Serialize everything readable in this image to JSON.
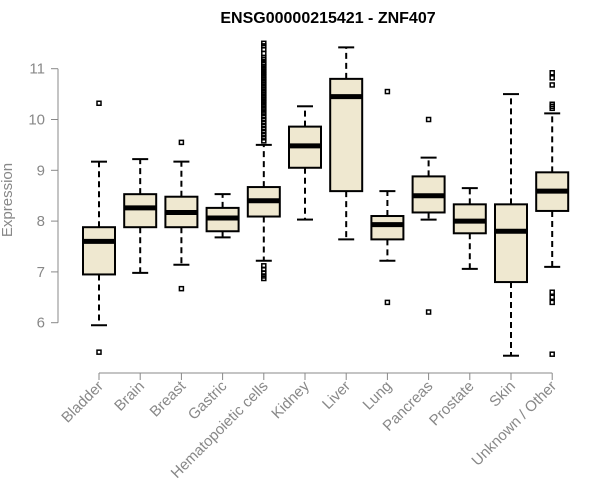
{
  "chart_data": {
    "type": "boxplot",
    "title": "ENSG00000215421 - ZNF407",
    "xlabel": "",
    "ylabel": "Expression",
    "ylim": [
      5.2,
      11.6
    ],
    "yticks": [
      6,
      7,
      8,
      9,
      10,
      11
    ],
    "grid": false,
    "box_fill": "#efe8d0",
    "categories": [
      "Bladder",
      "Brain",
      "Breast",
      "Gastric",
      "Hematopoietic cells",
      "Kidney",
      "Liver",
      "Lung",
      "Pancreas",
      "Prostate",
      "Skin",
      "Unknown / Other"
    ],
    "boxes": [
      {
        "min": 5.95,
        "q1": 6.95,
        "median": 7.6,
        "q3": 7.88,
        "max": 9.17,
        "outliers": [
          10.32,
          5.42
        ]
      },
      {
        "min": 6.98,
        "q1": 7.88,
        "median": 8.26,
        "q3": 8.53,
        "max": 9.22,
        "outliers": []
      },
      {
        "min": 7.14,
        "q1": 7.88,
        "median": 8.17,
        "q3": 8.48,
        "max": 9.17,
        "outliers": [
          9.55,
          6.67
        ]
      },
      {
        "min": 7.68,
        "q1": 7.8,
        "median": 8.06,
        "q3": 8.26,
        "max": 8.53,
        "outliers": []
      },
      {
        "min": 7.22,
        "q1": 8.09,
        "median": 8.4,
        "q3": 8.67,
        "max": 9.5,
        "outliers": [
          11.5,
          11.45,
          11.38,
          11.3,
          11.22,
          11.18,
          11.12,
          11.08,
          11.03,
          10.98,
          10.93,
          10.88,
          10.83,
          10.78,
          10.73,
          10.68,
          10.63,
          10.58,
          10.53,
          10.48,
          10.43,
          10.38,
          10.33,
          10.28,
          10.22,
          10.17,
          10.12,
          10.06,
          10.0,
          9.94,
          9.88,
          9.82,
          9.76,
          9.7,
          9.64,
          9.58,
          7.12,
          7.05,
          6.98,
          6.92,
          6.87
        ]
      },
      {
        "min": 8.03,
        "q1": 9.05,
        "median": 9.48,
        "q3": 9.86,
        "max": 10.26,
        "outliers": []
      },
      {
        "min": 7.64,
        "q1": 8.59,
        "median": 10.45,
        "q3": 10.8,
        "max": 11.42,
        "outliers": []
      },
      {
        "min": 7.22,
        "q1": 7.64,
        "median": 7.93,
        "q3": 8.1,
        "max": 8.59,
        "outliers": [
          10.55,
          6.4
        ]
      },
      {
        "min": 8.03,
        "q1": 8.17,
        "median": 8.5,
        "q3": 8.88,
        "max": 9.25,
        "outliers": [
          10.0,
          6.21
        ]
      },
      {
        "min": 7.06,
        "q1": 7.76,
        "median": 8.0,
        "q3": 8.33,
        "max": 8.65,
        "outliers": []
      },
      {
        "min": 5.35,
        "q1": 6.8,
        "median": 7.8,
        "q3": 8.33,
        "max": 10.5,
        "outliers": []
      },
      {
        "min": 7.1,
        "q1": 8.2,
        "median": 8.59,
        "q3": 8.96,
        "max": 10.12,
        "outliers": [
          10.92,
          10.82,
          10.68,
          10.3,
          10.26,
          10.22,
          6.6,
          6.5,
          6.4,
          5.38
        ]
      }
    ]
  }
}
